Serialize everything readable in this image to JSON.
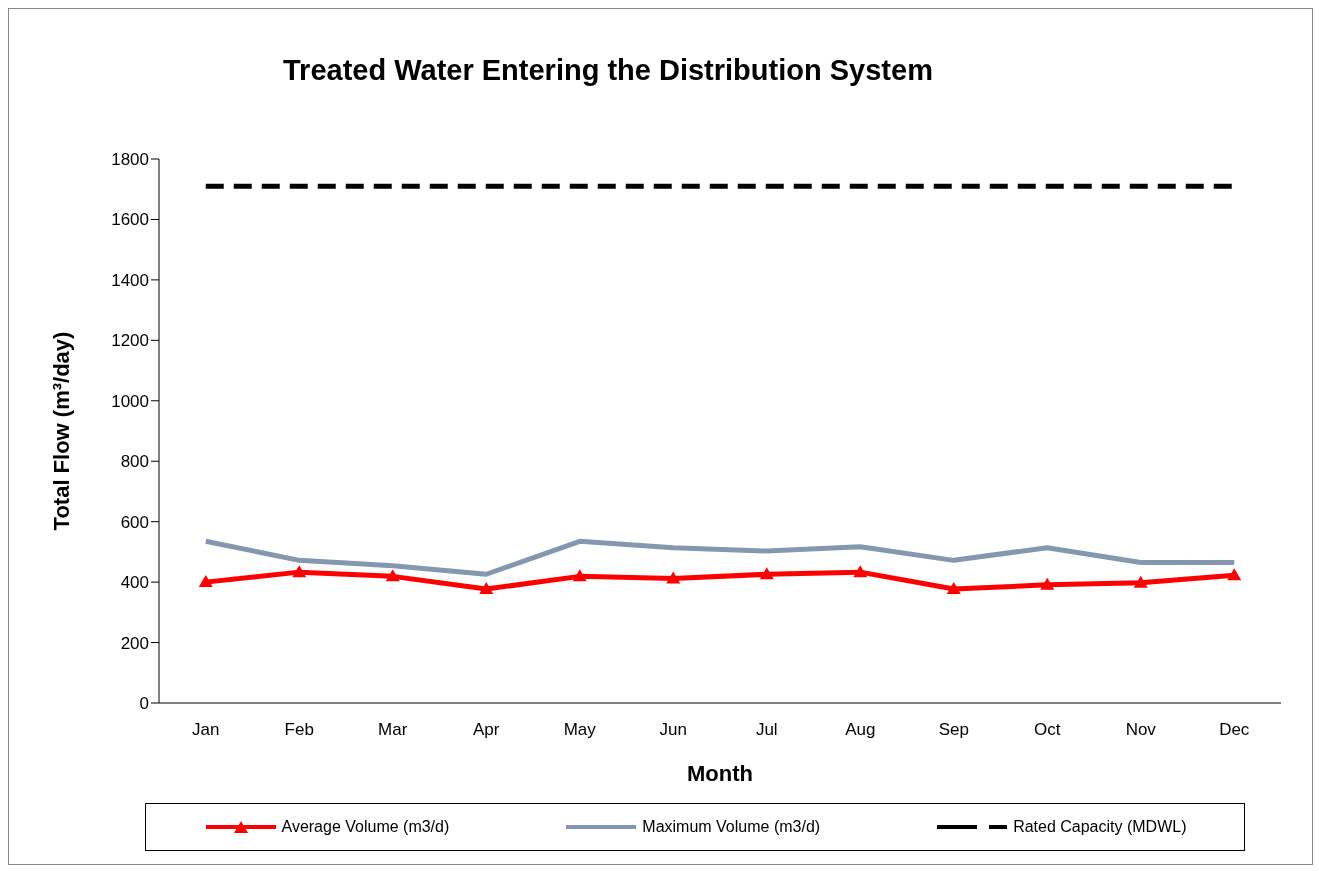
{
  "chart_data": {
    "type": "line",
    "title": "Treated Water Entering the Distribution System",
    "xlabel": "Month",
    "ylabel": "Total Flow (m³/day)",
    "categories": [
      "Jan",
      "Feb",
      "Mar",
      "Apr",
      "May",
      "Jun",
      "Jul",
      "Aug",
      "Sep",
      "Oct",
      "Nov",
      "Dec"
    ],
    "series": [
      {
        "name": "Average Volume (m3/d)",
        "color": "#ff0000",
        "marker": "triangle",
        "line_style": "solid",
        "values": [
          400,
          433,
          419,
          377,
          419,
          412,
          426,
          433,
          377,
          391,
          398,
          423
        ]
      },
      {
        "name": "Maximum Volume (m3/d)",
        "color": "#8497b0",
        "marker": "none",
        "line_style": "solid",
        "values": [
          535,
          472,
          454,
          426,
          535,
          514,
          503,
          517,
          472,
          514,
          465,
          465
        ]
      },
      {
        "name": "Rated Capacity (MDWL)",
        "color": "#000000",
        "marker": "none",
        "line_style": "dashed",
        "values": [
          1710,
          1710,
          1710,
          1710,
          1710,
          1710,
          1710,
          1710,
          1710,
          1710,
          1710,
          1710
        ]
      }
    ],
    "ylim": [
      0,
      1800
    ],
    "yticks": [
      0,
      200,
      400,
      600,
      800,
      1000,
      1200,
      1400,
      1600,
      1800
    ],
    "grid": false,
    "legend": "bottom"
  }
}
